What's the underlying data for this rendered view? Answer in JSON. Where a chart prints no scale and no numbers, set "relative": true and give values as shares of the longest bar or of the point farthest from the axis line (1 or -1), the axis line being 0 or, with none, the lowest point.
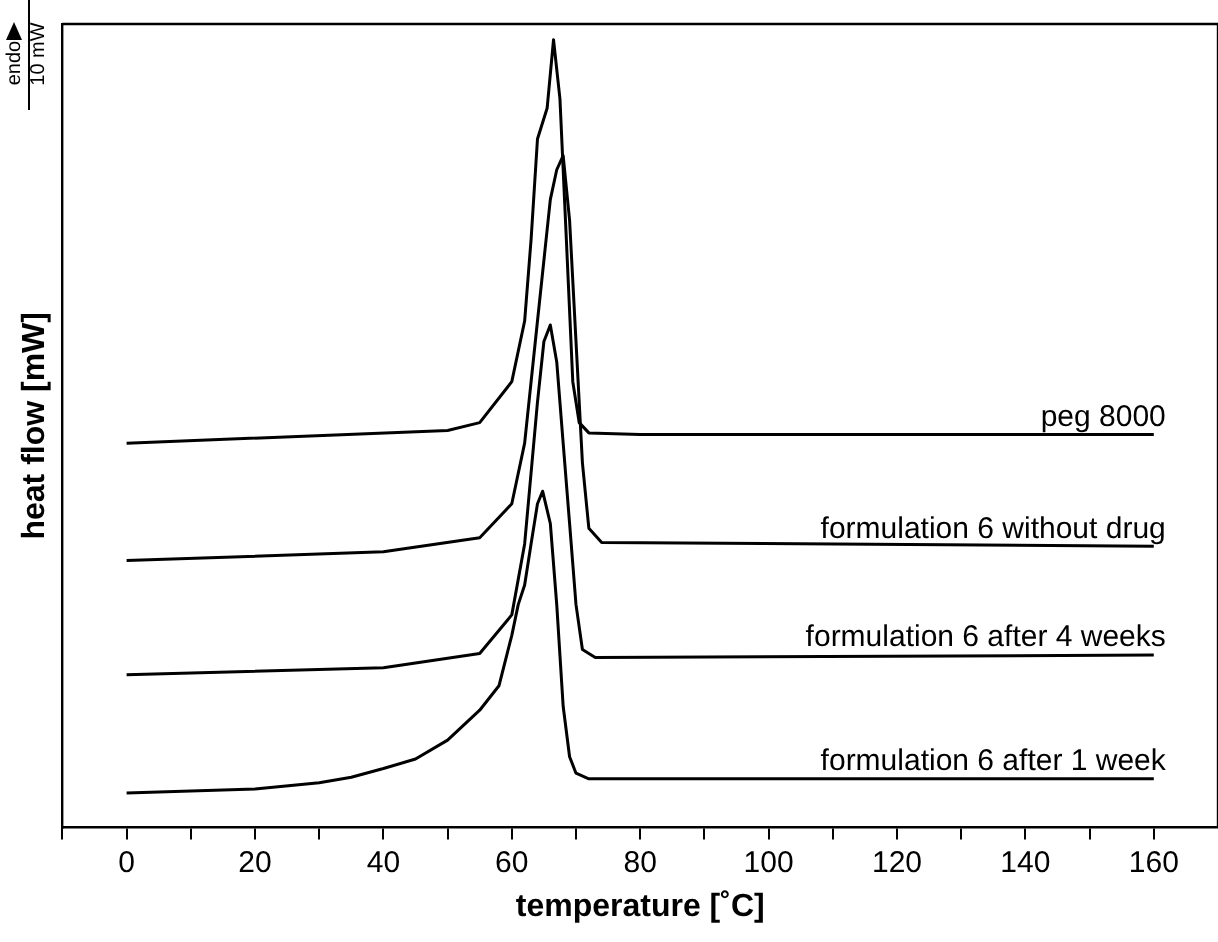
{
  "chart_data": {
    "type": "line",
    "relative": true,
    "xlabel": "temperature [˚C]",
    "ylabel": "heat flow [mW]",
    "annotations": [
      "endo",
      "10 mW"
    ],
    "xlim": [
      -10,
      170
    ],
    "xticks": [
      {
        "value": -10,
        "label": null
      },
      0,
      {
        "value": 10,
        "label": null
      },
      20,
      {
        "value": 30,
        "label": null
      },
      40,
      {
        "value": 50,
        "label": null
      },
      60,
      {
        "value": 70,
        "label": null
      },
      80,
      {
        "value": 90,
        "label": null
      },
      100,
      {
        "value": 110,
        "label": null
      },
      120,
      {
        "value": 130,
        "label": null
      },
      140,
      {
        "value": 150,
        "label": null
      },
      160
    ],
    "grid": false,
    "legend": false,
    "marker": "none",
    "line_style": "solid",
    "tick_labels": "x",
    "series": [
      {
        "name": "peg 8000",
        "color": "#000000",
        "x": [
          0,
          50,
          55,
          60,
          62,
          63,
          64,
          65.5,
          66.5,
          67.5,
          68.5,
          69.5,
          70.5,
          72,
          80,
          160
        ],
        "values": [
          0.488,
          0.504,
          0.514,
          0.566,
          0.643,
          0.746,
          0.874,
          0.913,
          1.0,
          0.925,
          0.746,
          0.566,
          0.514,
          0.501,
          0.499,
          0.499
        ]
      },
      {
        "name": "formulation 6 without drug",
        "color": "#000000",
        "x": [
          0,
          40,
          55,
          60,
          62,
          64,
          66,
          67,
          68,
          69,
          70,
          71,
          72,
          74,
          160
        ],
        "values": [
          0.339,
          0.35,
          0.368,
          0.411,
          0.488,
          0.643,
          0.797,
          0.835,
          0.853,
          0.771,
          0.617,
          0.463,
          0.38,
          0.362,
          0.357
        ]
      },
      {
        "name": "formulation 6 after 4 weeks",
        "color": "#000000",
        "x": [
          0,
          40,
          55,
          60,
          62,
          64,
          65,
          66,
          67,
          68,
          69,
          70,
          71,
          73,
          160
        ],
        "values": [
          0.194,
          0.203,
          0.221,
          0.27,
          0.36,
          0.54,
          0.617,
          0.638,
          0.591,
          0.488,
          0.386,
          0.283,
          0.226,
          0.216,
          0.219
        ]
      },
      {
        "name": "formulation 6 after 1 week",
        "color": "#000000",
        "x": [
          0,
          20,
          30,
          35,
          40,
          45,
          50,
          55,
          58,
          60,
          61,
          62,
          63,
          64,
          64.8,
          66,
          67,
          68,
          69,
          70,
          72,
          160
        ],
        "values": [
          0.044,
          0.049,
          0.057,
          0.064,
          0.075,
          0.087,
          0.111,
          0.149,
          0.18,
          0.244,
          0.283,
          0.308,
          0.36,
          0.411,
          0.427,
          0.386,
          0.283,
          0.154,
          0.09,
          0.069,
          0.062,
          0.062
        ]
      }
    ]
  }
}
